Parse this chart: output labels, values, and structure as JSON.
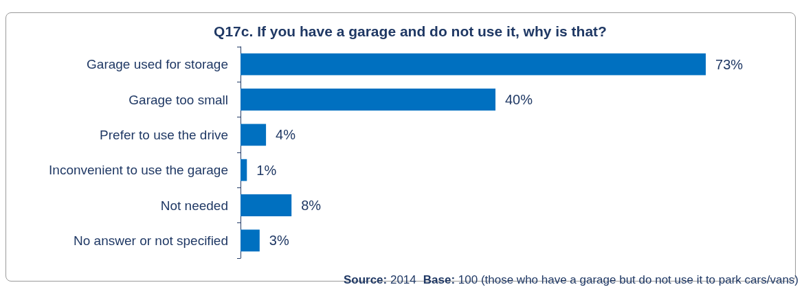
{
  "chart_data": {
    "type": "bar",
    "orientation": "horizontal",
    "title": "Q17c. If you have a garage and do not use it, why is that?",
    "categories": [
      "Garage used for storage",
      "Garage too small",
      "Prefer to use the drive",
      "Inconvenient to use the garage",
      "Not needed",
      "No answer or not specified"
    ],
    "values": [
      73,
      40,
      4,
      1,
      8,
      3
    ],
    "value_labels": [
      "73%",
      "40%",
      "4%",
      "1%",
      "8%",
      "3%"
    ],
    "color": "#0070c0",
    "grid": false,
    "annotations": [
      "Source: 2014",
      "Base: 100 (those who have a garage but do not use it to park cars/vans)"
    ]
  }
}
